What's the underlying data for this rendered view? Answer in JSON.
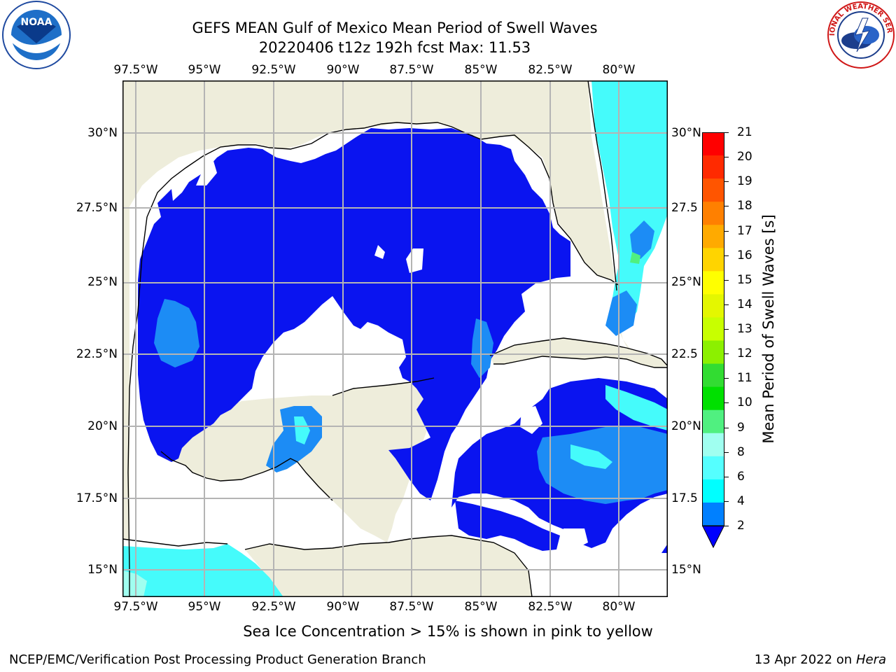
{
  "title": {
    "line1": "GEFS MEAN Gulf of Mexico Mean Period of Swell Waves",
    "line2": "20220406 t12z 192h fcst   Max: 11.53"
  },
  "map": {
    "lon_labels": [
      "97.5°W",
      "95°W",
      "92.5°W",
      "90°W",
      "87.5°W",
      "85°W",
      "82.5°W",
      "80°W"
    ],
    "lat_labels_left": [
      "30°N",
      "27.5°N",
      "25°N",
      "22.5°N",
      "20°N",
      "17.5°N",
      "15°N"
    ],
    "lat_labels_right": [
      "30°N",
      "27.5",
      "25°N",
      "22.5",
      "20°N",
      "17.5",
      "15°N"
    ],
    "colors": {
      "land": "#eeeddb",
      "ocean_low": "#0a14f0",
      "ocean_mid": "#1c8cf5",
      "ocean_high": "#45fbfb",
      "no_data": "#ffffff",
      "grid": "#b4b4b4"
    }
  },
  "colorbar": {
    "label": "Mean Period of Swell Waves [s]",
    "ticks": [
      "21",
      "20",
      "19",
      "18",
      "17",
      "16",
      "15",
      "14",
      "13",
      "12",
      "11",
      "10",
      "9",
      "8",
      "6",
      "4",
      "2"
    ],
    "colors": [
      "#ff0000",
      "#ff2a00",
      "#ff5500",
      "#ff8000",
      "#ffaa00",
      "#ffd400",
      "#ffff00",
      "#e4f700",
      "#c8ff00",
      "#8cf000",
      "#32dc32",
      "#00e000",
      "#50f080",
      "#a0fff0",
      "#55ffff",
      "#00ffff",
      "#0080ff"
    ],
    "extend_color": "#0000ff"
  },
  "note": "Sea Ice Concentration > 15% is shown in pink to yellow",
  "footer": {
    "left": "NCEP/EMC/Verification Post Processing Product Generation Branch",
    "date": "13 Apr 2022 on",
    "host": "Hera"
  },
  "logos": {
    "noaa": {
      "text": "NOAA"
    },
    "nws": {
      "text": "NATIONAL WEATHER SERVICE"
    }
  }
}
